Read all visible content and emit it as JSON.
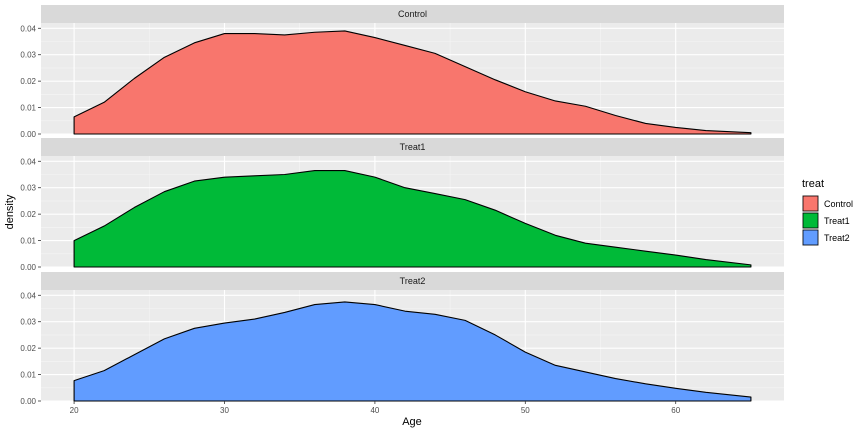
{
  "chart_data": {
    "type": "area",
    "subtype": "faceted density",
    "xlabel": "Age",
    "ylabel": "density",
    "xlim": [
      17.8,
      67.2
    ],
    "ylim": [
      0,
      0.042
    ],
    "x_ticks": [
      20,
      30,
      40,
      50,
      60
    ],
    "y_ticks": [
      0,
      0.01,
      0.02,
      0.03,
      0.04
    ],
    "y_tick_labels": [
      "0.00",
      "0.01",
      "0.02",
      "0.03",
      "0.04"
    ],
    "grid": true,
    "legend": {
      "title": "treat",
      "placement": "right",
      "entries": [
        "Control",
        "Treat1",
        "Treat2"
      ]
    },
    "series": [
      {
        "name": "Control",
        "color": "#F8766D",
        "x": [
          20,
          22,
          24,
          26,
          28,
          30,
          32,
          34,
          36,
          38,
          40,
          42,
          44,
          46,
          48,
          50,
          52,
          54,
          56,
          58,
          60,
          62,
          65
        ],
        "y": [
          0.0065,
          0.012,
          0.021,
          0.029,
          0.0345,
          0.038,
          0.038,
          0.0375,
          0.0385,
          0.039,
          0.0365,
          0.0335,
          0.0305,
          0.0255,
          0.0205,
          0.016,
          0.0125,
          0.0105,
          0.007,
          0.004,
          0.0025,
          0.0013,
          0.0005
        ]
      },
      {
        "name": "Treat1",
        "color": "#00BA38",
        "x": [
          20,
          22,
          24,
          26,
          28,
          30,
          32,
          34,
          36,
          38,
          40,
          42,
          44,
          46,
          48,
          50,
          52,
          54,
          56,
          58,
          60,
          62,
          65
        ],
        "y": [
          0.01,
          0.0155,
          0.0225,
          0.0285,
          0.0325,
          0.034,
          0.0345,
          0.035,
          0.0365,
          0.0365,
          0.034,
          0.03,
          0.0278,
          0.0255,
          0.0215,
          0.0165,
          0.012,
          0.009,
          0.0075,
          0.006,
          0.0045,
          0.0028,
          0.0008
        ]
      },
      {
        "name": "Treat2",
        "color": "#619CFF",
        "x": [
          20,
          22,
          24,
          26,
          28,
          30,
          32,
          34,
          36,
          38,
          40,
          42,
          44,
          46,
          48,
          50,
          52,
          54,
          56,
          58,
          60,
          62,
          65
        ],
        "y": [
          0.0077,
          0.0115,
          0.0175,
          0.0235,
          0.0275,
          0.0295,
          0.031,
          0.0335,
          0.0365,
          0.0375,
          0.0365,
          0.034,
          0.0328,
          0.0305,
          0.025,
          0.0185,
          0.0135,
          0.011,
          0.0085,
          0.0065,
          0.0048,
          0.0033,
          0.0015
        ]
      }
    ]
  }
}
